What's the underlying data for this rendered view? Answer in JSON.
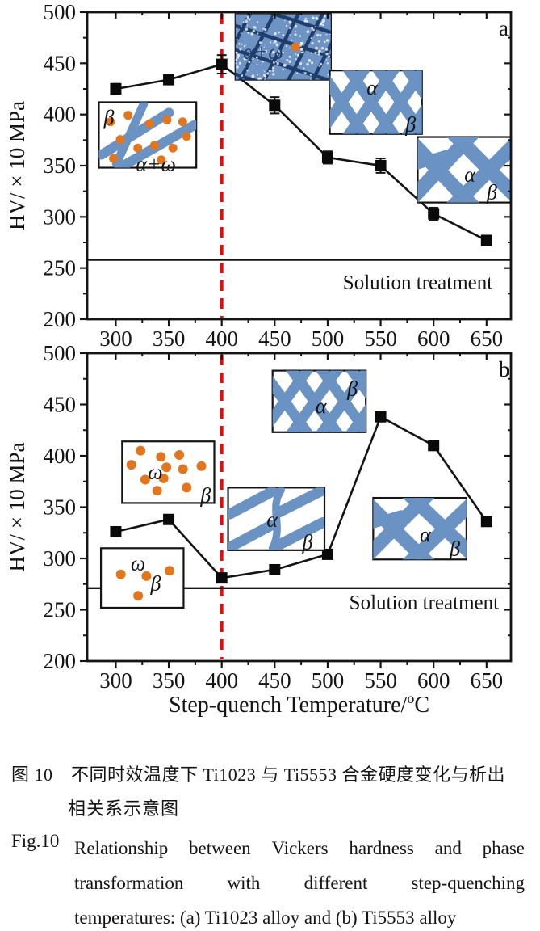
{
  "figure": {
    "xlabel": {
      "pre": "Step-quench Temperature/",
      "sup": "o",
      "post": "C"
    },
    "ylabel": "HV/ × 10 MPa"
  },
  "colors": {
    "line": "#141414",
    "marker": "#0a0a0a",
    "red_dashed": "#f20505",
    "blue_stroke": "#6a92c3",
    "dense_fill": "#6e94c6",
    "dense_line": "#1f3e6b",
    "orange_dot": "#e2761e"
  },
  "chart_data": [
    {
      "type": "line",
      "panel_label": "a",
      "alloy": "Ti1023",
      "ylabel": "HV/ × 10 MPa",
      "x": [
        300,
        350,
        400,
        450,
        500,
        550,
        600,
        650
      ],
      "values": [
        425,
        434,
        449,
        409,
        358,
        350,
        303,
        277
      ],
      "errors": [
        5,
        3,
        9,
        8,
        6,
        7,
        6,
        0
      ],
      "xlim": [
        273,
        673
      ],
      "ylim": [
        200,
        500
      ],
      "x_ticks": [
        300,
        350,
        400,
        450,
        500,
        550,
        600,
        650
      ],
      "y_ticks": [
        200,
        250,
        300,
        350,
        400,
        450,
        500
      ],
      "dashed_line_x": 400,
      "solution_treatment": {
        "value": 258,
        "label": "Solution treatment",
        "label_pos": [
          585,
          236
        ]
      },
      "insets": [
        {
          "id": "a-beta-alpha-omega",
          "x": [
            284,
            376
          ],
          "y": [
            348,
            412
          ],
          "pattern": "streaks-dots",
          "labels": [
            {
              "text": "β",
              "fx": 0.05,
              "fy": 0.24
            },
            {
              "text": "α+ω",
              "fx": 0.38,
              "fy": 0.95
            }
          ],
          "dots": [
            [
              0.12,
              0.3
            ],
            [
              0.3,
              0.2
            ],
            [
              0.52,
              0.33
            ],
            [
              0.7,
              0.27
            ],
            [
              0.86,
              0.3
            ],
            [
              0.22,
              0.57
            ],
            [
              0.4,
              0.7
            ],
            [
              0.57,
              0.66
            ],
            [
              0.76,
              0.7
            ],
            [
              0.9,
              0.52
            ],
            [
              0.15,
              0.86
            ],
            [
              0.64,
              0.88
            ]
          ]
        },
        {
          "id": "a-dense-alpha-omega",
          "x": [
            413,
            503
          ],
          "y": [
            434,
            498
          ],
          "pattern": "dense",
          "labels": [
            {
              "text": "α+ω",
              "fx": 0.08,
              "fy": 0.58
            }
          ],
          "dots": [
            [
              0.63,
              0.5
            ]
          ]
        },
        {
          "id": "a-lattice-alpha-beta",
          "x": [
            502,
            589
          ],
          "y": [
            381,
            443
          ],
          "pattern": "lattice",
          "labels": [
            {
              "text": "α",
              "fx": 0.4,
              "fy": 0.28
            },
            {
              "text": "β",
              "fx": 0.82,
              "fy": 0.86
            }
          ]
        },
        {
          "id": "a-bigx-alpha-beta",
          "x": [
            585,
            673
          ],
          "y": [
            314,
            378
          ],
          "pattern": "bigX",
          "labels": [
            {
              "text": "α",
              "fx": 0.5,
              "fy": 0.58
            },
            {
              "text": "β",
              "fx": 0.74,
              "fy": 0.85
            }
          ]
        }
      ]
    },
    {
      "type": "line",
      "panel_label": "b",
      "alloy": "Ti5553",
      "ylabel": "HV/ × 10 MPa",
      "x": [
        300,
        350,
        400,
        450,
        500,
        550,
        600,
        650
      ],
      "values": [
        326,
        338,
        281,
        289,
        304,
        438,
        410,
        336
      ],
      "errors": [
        0,
        0,
        0,
        0,
        0,
        0,
        0,
        0
      ],
      "xlim": [
        273,
        673
      ],
      "ylim": [
        200,
        500
      ],
      "x_ticks": [
        300,
        350,
        400,
        450,
        500,
        550,
        600,
        650
      ],
      "y_ticks": [
        200,
        250,
        300,
        350,
        400,
        450,
        500
      ],
      "dashed_line_x": 400,
      "solution_treatment": {
        "value": 271,
        "label": "Solution treatment",
        "label_pos": [
          591,
          257
        ]
      },
      "insets": [
        {
          "id": "b-omega-dots-many",
          "x": [
            306,
            393
          ],
          "y": [
            354,
            414
          ],
          "pattern": "dots",
          "labels": [
            {
              "text": "ω",
              "fx": 0.28,
              "fy": 0.5
            },
            {
              "text": "β",
              "fx": 0.85,
              "fy": 0.88
            }
          ],
          "dots": [
            [
              0.2,
              0.15
            ],
            [
              0.42,
              0.25
            ],
            [
              0.62,
              0.22
            ],
            [
              0.1,
              0.38
            ],
            [
              0.48,
              0.42
            ],
            [
              0.66,
              0.45
            ],
            [
              0.86,
              0.4
            ],
            [
              0.25,
              0.62
            ],
            [
              0.45,
              0.6
            ],
            [
              0.38,
              0.8
            ],
            [
              0.7,
              0.75
            ]
          ]
        },
        {
          "id": "b-omega-dots-few",
          "x": [
            286,
            364
          ],
          "y": [
            252,
            310
          ],
          "pattern": "dots",
          "labels": [
            {
              "text": "ω",
              "fx": 0.36,
              "fy": 0.26
            },
            {
              "text": "β",
              "fx": 0.6,
              "fy": 0.6
            }
          ],
          "dots": [
            [
              0.24,
              0.44
            ],
            [
              0.55,
              0.47
            ],
            [
              0.83,
              0.38
            ],
            [
              0.45,
              0.8
            ]
          ]
        },
        {
          "id": "b-lattice-alpha-beta",
          "x": [
            448,
            536
          ],
          "y": [
            423,
            483
          ],
          "pattern": "lattice",
          "labels": [
            {
              "text": "α",
              "fx": 0.46,
              "fy": 0.58
            },
            {
              "text": "β",
              "fx": 0.8,
              "fy": 0.3
            }
          ]
        },
        {
          "id": "b-streaks-alpha-beta",
          "x": [
            406,
            497
          ],
          "y": [
            308,
            369
          ],
          "pattern": "streaks",
          "labels": [
            {
              "text": "α",
              "fx": 0.4,
              "fy": 0.52
            },
            {
              "text": "β",
              "fx": 0.77,
              "fy": 0.88
            }
          ]
        },
        {
          "id": "b-bigx-alpha-beta",
          "x": [
            543,
            631
          ],
          "y": [
            299,
            359
          ],
          "pattern": "bigX",
          "labels": [
            {
              "text": "α",
              "fx": 0.5,
              "fy": 0.6
            },
            {
              "text": "β",
              "fx": 0.82,
              "fy": 0.83
            }
          ]
        }
      ]
    }
  ],
  "caption": {
    "zh_line1": "图 10　不同时效温度下 Ti1023 与 Ti5553 合金硬度变化与析出",
    "zh_line2": "相关系示意图",
    "en_label": "Fig.10",
    "en_lines": [
      "Relationship between Vickers hardness and phase",
      "transformation with different step-quenching",
      "temperatures: (a) Ti1023 alloy and (b) Ti5553 alloy"
    ]
  }
}
